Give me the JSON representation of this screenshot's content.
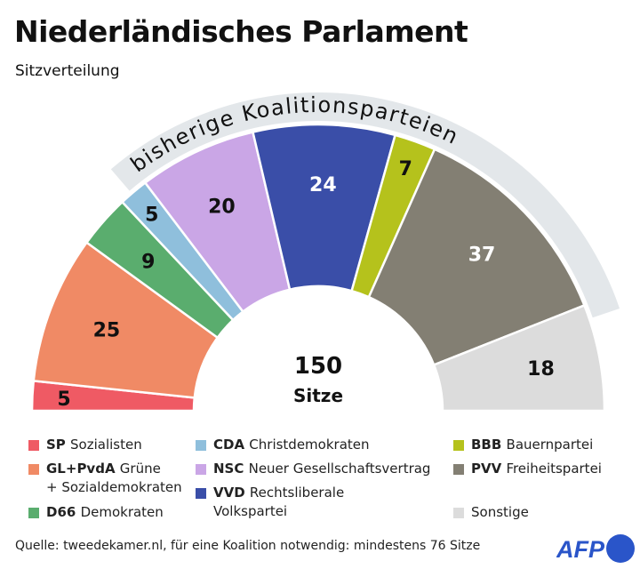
{
  "title": "Niederländisches Parlament",
  "subtitle": "Sitzverteilung",
  "chart_data": {
    "type": "parliament-semicircle",
    "total": 150,
    "total_label": "Sitze",
    "coalition_band_label": "bisherige Koalitionsparteien",
    "coalition_band_parties": [
      "NSC",
      "VVD",
      "BBB",
      "PVV"
    ],
    "parties": [
      {
        "abbr": "SP",
        "name": "Sozialisten",
        "seats": 5,
        "color": "#ef5a64",
        "label_color": "#111"
      },
      {
        "abbr": "GL+PvdA",
        "name": "Grüne",
        "name2": "+ Sozialdemokraten",
        "seats": 25,
        "color": "#f08a65",
        "label_color": "#111"
      },
      {
        "abbr": "D66",
        "name": "Demokraten",
        "seats": 9,
        "color": "#5aad6e",
        "label_color": "#111"
      },
      {
        "abbr": "CDA",
        "name": "Christdemokraten",
        "seats": 5,
        "color": "#8fbfdc",
        "label_color": "#111"
      },
      {
        "abbr": "NSC",
        "name": "Neuer Gesellschaftsvertrag",
        "seats": 20,
        "color": "#caa6e6",
        "label_color": "#111"
      },
      {
        "abbr": "VVD",
        "name": "Rechtsliberale",
        "name2": "Volkspartei",
        "seats": 24,
        "color": "#3a4ea8",
        "label_color": "#fff"
      },
      {
        "abbr": "BBB",
        "name": "Bauernpartei",
        "seats": 7,
        "color": "#b5c21c",
        "label_color": "#111"
      },
      {
        "abbr": "PVV",
        "name": "Freiheitspartei",
        "seats": 37,
        "color": "#837f73",
        "label_color": "#fff"
      },
      {
        "abbr": "",
        "name": "Sonstige",
        "seats": 18,
        "color": "#dcdcdc",
        "label_color": "#111"
      }
    ]
  },
  "source": "Quelle: tweedekamer.nl, für eine Koalition notwendig: mindestens 76 Sitze",
  "logo": "AFP",
  "colors": {
    "band": "#e3e7ea",
    "afp": "#2a55c9"
  }
}
